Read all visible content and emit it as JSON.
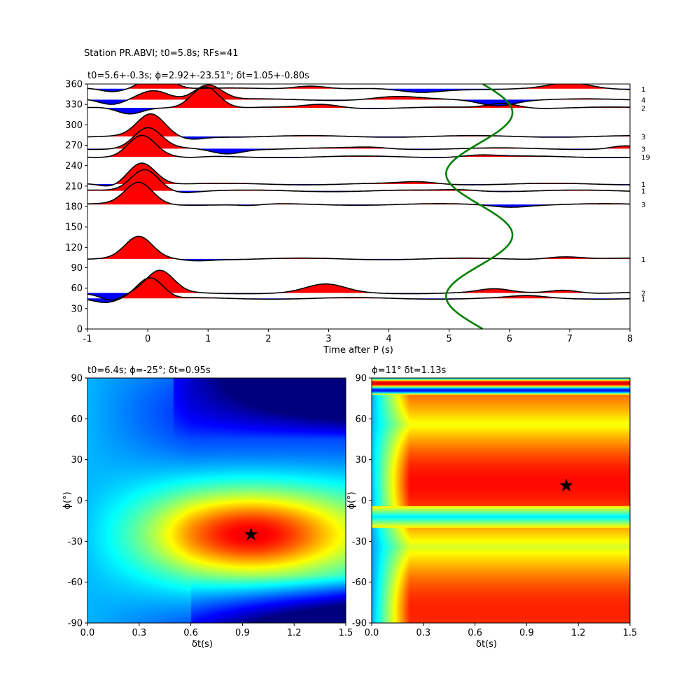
{
  "suptitle": "Station PR.ABVI; t0=5.8s; RFs=41",
  "chart_data": [
    {
      "type": "line",
      "panel": "rf-traces",
      "title": "t0=5.6+-0.3s; ϕ=2.92+-23.51°; δt=1.05+-0.80s",
      "xlabel": "Time after P (s)",
      "ylabel": "",
      "xlim": [
        -1,
        8
      ],
      "ylim": [
        0,
        360
      ],
      "xticks": [
        -1,
        0,
        1,
        2,
        3,
        4,
        5,
        6,
        7,
        8
      ],
      "yticks": [
        0,
        30,
        60,
        90,
        120,
        150,
        180,
        210,
        240,
        270,
        300,
        330,
        360
      ],
      "traces": [
        {
          "baz": 45,
          "count": "1",
          "pulse_t": 0.05,
          "pulse_amp": 32,
          "pulses": [
            [
              -0.7,
              -5,
              0.25
            ],
            [
              0.3,
              -4,
              0.3
            ],
            [
              6.3,
              3,
              0.4
            ]
          ]
        },
        {
          "baz": 53,
          "count": "2",
          "pulse_t": 0.2,
          "pulse_amp": 32,
          "pulses": [
            [
              -0.6,
              -10,
              0.25
            ],
            [
              2.95,
              12,
              0.45
            ],
            [
              5.75,
              5,
              0.35
            ],
            [
              6.9,
              5,
              0.35
            ]
          ]
        },
        {
          "baz": 103,
          "count": "1",
          "pulse_t": -0.15,
          "pulse_amp": 32,
          "pulses": [
            [
              0.8,
              -2,
              0.3
            ],
            [
              6.9,
              4,
              0.4
            ]
          ]
        },
        {
          "baz": 183,
          "count": "3",
          "pulse_t": -0.15,
          "pulse_amp": 32,
          "pulses": [
            [
              1.7,
              -2,
              0.3
            ],
            [
              6.0,
              -3,
              0.4
            ]
          ]
        },
        {
          "baz": 203,
          "count": "1",
          "pulse_t": -0.05,
          "pulse_amp": 32,
          "pulses": [
            [
              0.6,
              -2,
              0.3
            ],
            [
              5.2,
              2,
              0.4
            ]
          ]
        },
        {
          "baz": 213,
          "count": "1",
          "pulse_t": -0.1,
          "pulse_amp": 32,
          "pulses": [
            [
              -0.6,
              -4,
              0.25
            ],
            [
              4.5,
              3,
              0.4
            ]
          ]
        },
        {
          "baz": 253,
          "count": "19",
          "pulse_t": -0.1,
          "pulse_amp": 32,
          "pulses": [
            [
              0.7,
              -2,
              0.3
            ],
            [
              5.5,
              3,
              0.4
            ]
          ]
        },
        {
          "baz": 265,
          "count": "3",
          "pulse_t": 0.0,
          "pulse_amp": 30,
          "pulses": [
            [
              1.3,
              -7,
              0.35
            ],
            [
              3.7,
              2,
              0.4
            ],
            [
              7.9,
              4,
              0.3
            ]
          ]
        },
        {
          "baz": 283,
          "count": "3",
          "pulse_t": 0.05,
          "pulse_amp": 32,
          "pulses": [
            [
              0.7,
              -4,
              0.3
            ]
          ]
        },
        {
          "baz": 325,
          "count": "2",
          "pulse_t": 0.95,
          "pulse_amp": 32,
          "pulses": [
            [
              -0.3,
              -10,
              0.3
            ],
            [
              2.9,
              5,
              0.4
            ],
            [
              5.9,
              7,
              0.35
            ]
          ]
        },
        {
          "baz": 337,
          "count": "4",
          "pulse_t": 1.0,
          "pulse_amp": 22,
          "pulses": [
            [
              0.1,
              14,
              0.35
            ],
            [
              -0.6,
              -8,
              0.3
            ],
            [
              4.1,
              4,
              0.5
            ],
            [
              5.8,
              -8,
              0.4
            ]
          ]
        },
        {
          "baz": 353,
          "count": "1",
          "pulse_t": 0.15,
          "pulse_amp": 24,
          "pulses": [
            [
              -0.6,
              -4,
              0.25
            ],
            [
              2.7,
              5,
              0.4
            ],
            [
              4.5,
              -6,
              0.5
            ],
            [
              7.0,
              8,
              0.45
            ]
          ]
        }
      ],
      "curve": {
        "color": "#008000",
        "t0": 5.5,
        "amp": 0.55,
        "phase_deg": 93,
        "period_deg": 180
      }
    },
    {
      "type": "heatmap",
      "panel": "grid-search-left",
      "title": "t0=6.4s; ϕ=-25°; δt=0.95s",
      "xlabel": "δt(s)",
      "ylabel": "ϕ(°)",
      "xlim": [
        0,
        1.5
      ],
      "ylim": [
        -90,
        90
      ],
      "xticks": [
        "0.0",
        "0.3",
        "0.6",
        "0.9",
        "1.2",
        "1.5"
      ],
      "yticks": [
        "-90",
        "-60",
        "-30",
        "0",
        "30",
        "60",
        "90"
      ],
      "star": {
        "x": 0.95,
        "y": -25
      },
      "colormap": "jet"
    },
    {
      "type": "heatmap",
      "panel": "grid-search-right",
      "title": "ϕ=11° δt=1.13s",
      "xlabel": "δt(s)",
      "ylabel": "ϕ(°)",
      "xlim": [
        0,
        1.5
      ],
      "ylim": [
        -90,
        90
      ],
      "xticks": [
        "0.0",
        "0.3",
        "0.6",
        "0.9",
        "1.2",
        "1.5"
      ],
      "yticks": [
        "-90",
        "-60",
        "-30",
        "0",
        "30",
        "60",
        "90"
      ],
      "star": {
        "x": 1.13,
        "y": 11
      },
      "colormap": "jet"
    }
  ],
  "colors": {
    "positive": "#ff0000",
    "negative": "#0000ff",
    "trace": "#000000",
    "curve": "#008000"
  }
}
